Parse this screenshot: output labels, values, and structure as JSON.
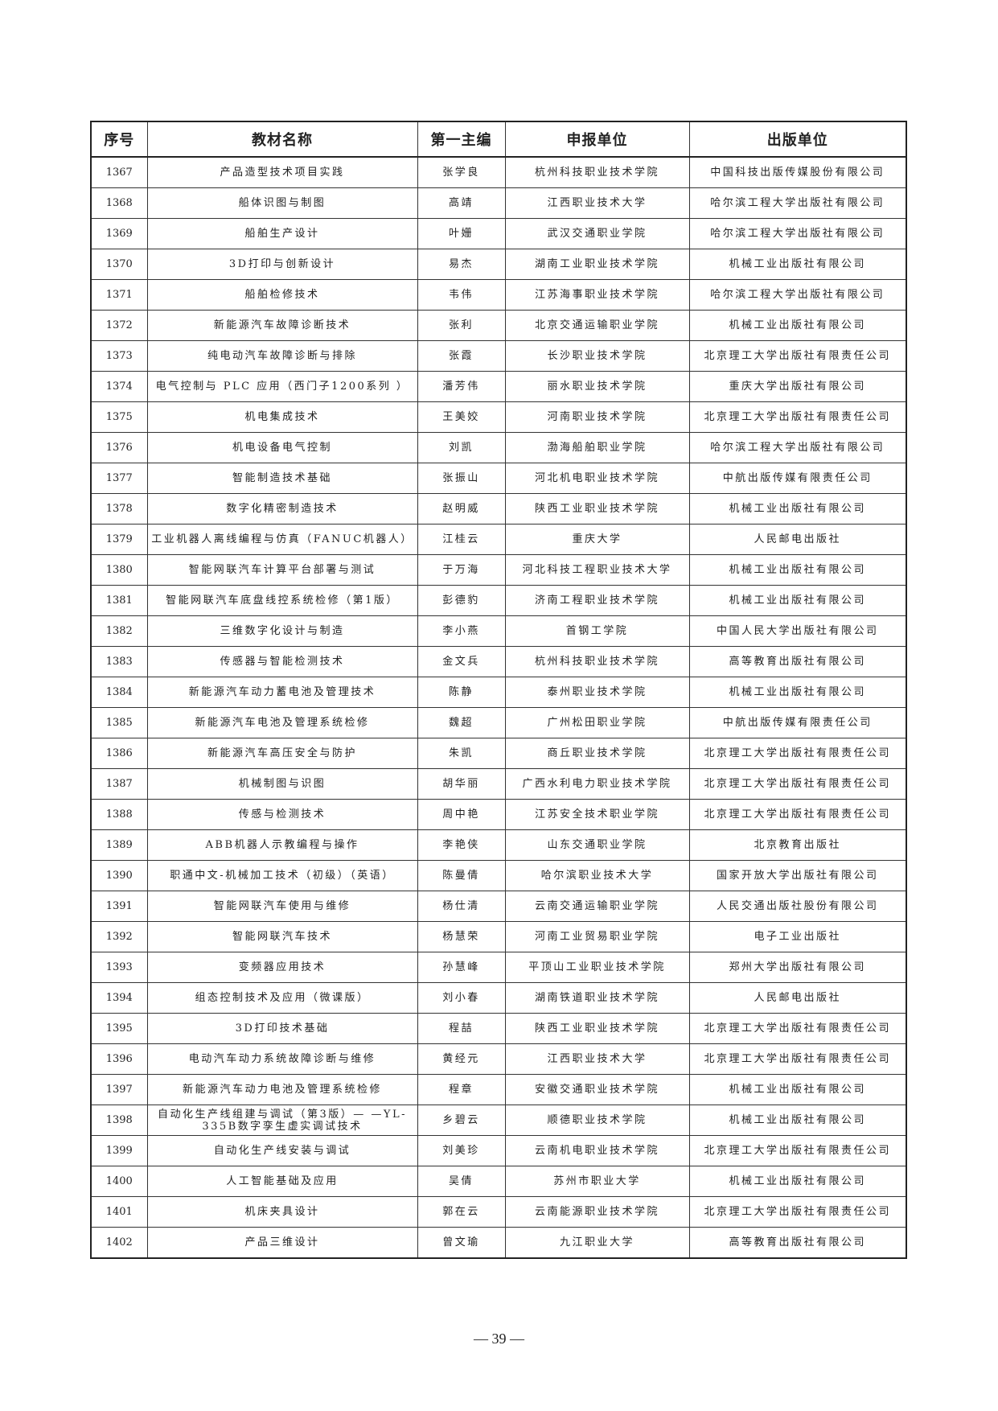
{
  "headers": [
    "序号",
    "教材名称",
    "第一主编",
    "申报单位",
    "出版单位"
  ],
  "rows": [
    [
      "1367",
      "产品造型技术项目实践",
      "张学良",
      "杭州科技职业技术学院",
      "中国科技出版传媒股份有限公司"
    ],
    [
      "1368",
      "船体识图与制图",
      "高靖",
      "江西职业技术大学",
      "哈尔滨工程大学出版社有限公司"
    ],
    [
      "1369",
      "船舶生产设计",
      "叶姗",
      "武汉交通职业学院",
      "哈尔滨工程大学出版社有限公司"
    ],
    [
      "1370",
      "3D打印与创新设计",
      "易杰",
      "湖南工业职业技术学院",
      "机械工业出版社有限公司"
    ],
    [
      "1371",
      "船舶检修技术",
      "韦伟",
      "江苏海事职业技术学院",
      "哈尔滨工程大学出版社有限公司"
    ],
    [
      "1372",
      "新能源汽车故障诊断技术",
      "张利",
      "北京交通运输职业学院",
      "机械工业出版社有限公司"
    ],
    [
      "1373",
      "纯电动汽车故障诊断与排除",
      "张霞",
      "长沙职业技术学院",
      "北京理工大学出版社有限责任公司"
    ],
    [
      "1374",
      "电气控制与 PLC 应用（西门子1200系列 ）",
      "潘芳伟",
      "丽水职业技术学院",
      "重庆大学出版社有限公司"
    ],
    [
      "1375",
      "机电集成技术",
      "王美姣",
      "河南职业技术学院",
      "北京理工大学出版社有限责任公司"
    ],
    [
      "1376",
      "机电设备电气控制",
      "刘凯",
      "渤海船舶职业学院",
      "哈尔滨工程大学出版社有限公司"
    ],
    [
      "1377",
      "智能制造技术基础",
      "张振山",
      "河北机电职业技术学院",
      "中航出版传媒有限责任公司"
    ],
    [
      "1378",
      "数字化精密制造技术",
      "赵明威",
      "陕西工业职业技术学院",
      "机械工业出版社有限公司"
    ],
    [
      "1379",
      "工业机器人离线编程与仿真（FANUC机器人）",
      "江桂云",
      "重庆大学",
      "人民邮电出版社"
    ],
    [
      "1380",
      "智能网联汽车计算平台部署与测试",
      "于万海",
      "河北科技工程职业技术大学",
      "机械工业出版社有限公司"
    ],
    [
      "1381",
      "智能网联汽车底盘线控系统检修（第1版）",
      "彭德豹",
      "济南工程职业技术学院",
      "机械工业出版社有限公司"
    ],
    [
      "1382",
      "三维数字化设计与制造",
      "李小燕",
      "首钢工学院",
      "中国人民大学出版社有限公司"
    ],
    [
      "1383",
      "传感器与智能检测技术",
      "金文兵",
      "杭州科技职业技术学院",
      "高等教育出版社有限公司"
    ],
    [
      "1384",
      "新能源汽车动力蓄电池及管理技术",
      "陈静",
      "泰州职业技术学院",
      "机械工业出版社有限公司"
    ],
    [
      "1385",
      "新能源汽车电池及管理系统检修",
      "魏超",
      "广州松田职业学院",
      "中航出版传媒有限责任公司"
    ],
    [
      "1386",
      "新能源汽车高压安全与防护",
      "朱凯",
      "商丘职业技术学院",
      "北京理工大学出版社有限责任公司"
    ],
    [
      "1387",
      "机械制图与识图",
      "胡华丽",
      "广西水利电力职业技术学院",
      "北京理工大学出版社有限责任公司"
    ],
    [
      "1388",
      "传感与检测技术",
      "周中艳",
      "江苏安全技术职业学院",
      "北京理工大学出版社有限责任公司"
    ],
    [
      "1389",
      "ABB机器人示教编程与操作",
      "李艳侠",
      "山东交通职业学院",
      "北京教育出版社"
    ],
    [
      "1390",
      "职通中文-机械加工技术（初级）（英语）",
      "陈曼倩",
      "哈尔滨职业技术大学",
      "国家开放大学出版社有限公司"
    ],
    [
      "1391",
      "智能网联汽车使用与维修",
      "杨仕清",
      "云南交通运输职业学院",
      "人民交通出版社股份有限公司"
    ],
    [
      "1392",
      "智能网联汽车技术",
      "杨慧荣",
      "河南工业贸易职业学院",
      "电子工业出版社"
    ],
    [
      "1393",
      "变频器应用技术",
      "孙慧峰",
      "平顶山工业职业技术学院",
      "郑州大学出版社有限公司"
    ],
    [
      "1394",
      "组态控制技术及应用（微课版）",
      "刘小春",
      "湖南铁道职业技术学院",
      "人民邮电出版社"
    ],
    [
      "1395",
      "3D打印技术基础",
      "程喆",
      "陕西工业职业技术学院",
      "北京理工大学出版社有限责任公司"
    ],
    [
      "1396",
      "电动汽车动力系统故障诊断与维修",
      "黄经元",
      "江西职业技术大学",
      "北京理工大学出版社有限责任公司"
    ],
    [
      "1397",
      "新能源汽车动力电池及管理系统检修",
      "程章",
      "安徽交通职业技术学院",
      "机械工业出版社有限公司"
    ],
    [
      "1398",
      "自动化生产线组建与调试（第3版）— —YL-335B数字孪生虚实调试技术",
      "乡碧云",
      "顺德职业技术学院",
      "机械工业出版社有限公司"
    ],
    [
      "1399",
      "自动化生产线安装与调试",
      "刘美珍",
      "云南机电职业技术学院",
      "北京理工大学出版社有限责任公司"
    ],
    [
      "1400",
      "人工智能基础及应用",
      "吴倩",
      "苏州市职业大学",
      "机械工业出版社有限公司"
    ],
    [
      "1401",
      "机床夹具设计",
      "郭在云",
      "云南能源职业技术学院",
      "北京理工大学出版社有限责任公司"
    ],
    [
      "1402",
      "产品三维设计",
      "曾文瑜",
      "九江职业大学",
      "高等教育出版社有限公司"
    ]
  ],
  "page_number": "— 39 —"
}
